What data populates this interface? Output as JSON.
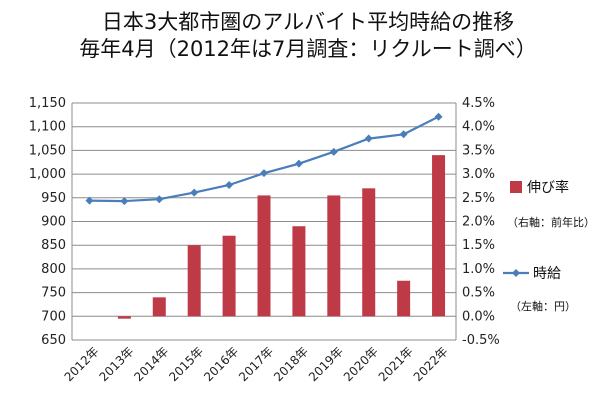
{
  "chart_data": {
    "type": "bar",
    "title_line1": "日本3大都市圏のアルバイト平均時給の推移",
    "title_line2": "毎年4月（2012年は7月調査：リクルート調べ）",
    "categories": [
      "2012年",
      "2013年",
      "2014年",
      "2015年",
      "2016年",
      "2017年",
      "2018年",
      "2019年",
      "2020年",
      "2021年",
      "2022年"
    ],
    "left_axis": {
      "min": 650,
      "max": 1150,
      "ticks": [
        "650",
        "700",
        "750",
        "800",
        "850",
        "900",
        "950",
        "1,000",
        "1,050",
        "1,100",
        "1,150"
      ]
    },
    "right_axis": {
      "min": -0.5,
      "max": 4.5,
      "ticks": [
        "-0.5%",
        "0.0%",
        "0.5%",
        "1.0%",
        "1.5%",
        "2.0%",
        "2.5%",
        "3.0%",
        "3.5%",
        "4.0%",
        "4.5%"
      ]
    },
    "series": [
      {
        "name": "伸び率",
        "note": "（右軸：前年比）",
        "type": "bar",
        "axis": "right",
        "color": "#be3a47",
        "values": [
          null,
          -0.05,
          0.4,
          1.5,
          1.7,
          2.55,
          1.9,
          2.55,
          2.7,
          0.75,
          3.4
        ]
      },
      {
        "name": "時給",
        "note": "（左軸：円）",
        "type": "line",
        "axis": "left",
        "color": "#4a7ebb",
        "values": [
          944,
          943,
          947,
          961,
          977,
          1002,
          1022,
          1047,
          1075,
          1084,
          1121
        ]
      }
    ],
    "grid": true,
    "legend": "right"
  }
}
